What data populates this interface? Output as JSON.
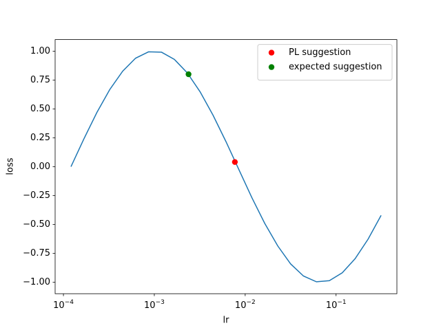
{
  "chart_data": {
    "type": "line",
    "x_label": "lr",
    "y_label": "loss",
    "xscale": "log",
    "xlim": [
      8.1e-05,
      0.467
    ],
    "ylim": [
      -1.1,
      1.1
    ],
    "xticks": [
      {
        "value": 0.0001,
        "label": "10−4"
      },
      {
        "value": 0.001,
        "label": "10−3"
      },
      {
        "value": 0.01,
        "label": "10−2"
      },
      {
        "value": 0.1,
        "label": "10−1"
      }
    ],
    "yticks": [
      {
        "value": -1,
        "label": "−1.00"
      },
      {
        "value": -0.75,
        "label": "−0.75"
      },
      {
        "value": -0.5,
        "label": "−0.50"
      },
      {
        "value": -0.25,
        "label": "−0.25"
      },
      {
        "value": 0,
        "label": "0.00"
      },
      {
        "value": 0.25,
        "label": "0.25"
      },
      {
        "value": 0.5,
        "label": "0.50"
      },
      {
        "value": 0.75,
        "label": "0.75"
      },
      {
        "value": 1,
        "label": "1.00"
      }
    ],
    "legend": "upper right",
    "series": [
      {
        "type": "line",
        "color": "#1f77b4",
        "x": [
          0.000121,
          0.000168,
          0.000233,
          0.000323,
          0.000449,
          0.000622,
          0.000863,
          0.0012,
          0.00166,
          0.0023,
          0.00319,
          0.00443,
          0.00615,
          0.00853,
          0.0118,
          0.0164,
          0.0228,
          0.0316,
          0.0438,
          0.0608,
          0.0843,
          0.117,
          0.162,
          0.225,
          0.313
        ],
        "values": [
          0,
          0.241,
          0.468,
          0.667,
          0.827,
          0.939,
          0.994,
          0.991,
          0.929,
          0.813,
          0.648,
          0.445,
          0.216,
          -0.026,
          -0.266,
          -0.491,
          -0.686,
          -0.842,
          -0.947,
          -0.997,
          -0.987,
          -0.919,
          -0.797,
          -0.628,
          -0.422
        ]
      },
      {
        "type": "scatter",
        "name": "PL suggestion",
        "color": "#ff0000",
        "x": [
          0.0077
        ],
        "values": [
          0.04
        ]
      },
      {
        "type": "scatter",
        "name": "expected suggestion",
        "color": "#008000",
        "x": [
          0.00238
        ],
        "values": [
          0.8
        ]
      }
    ]
  }
}
